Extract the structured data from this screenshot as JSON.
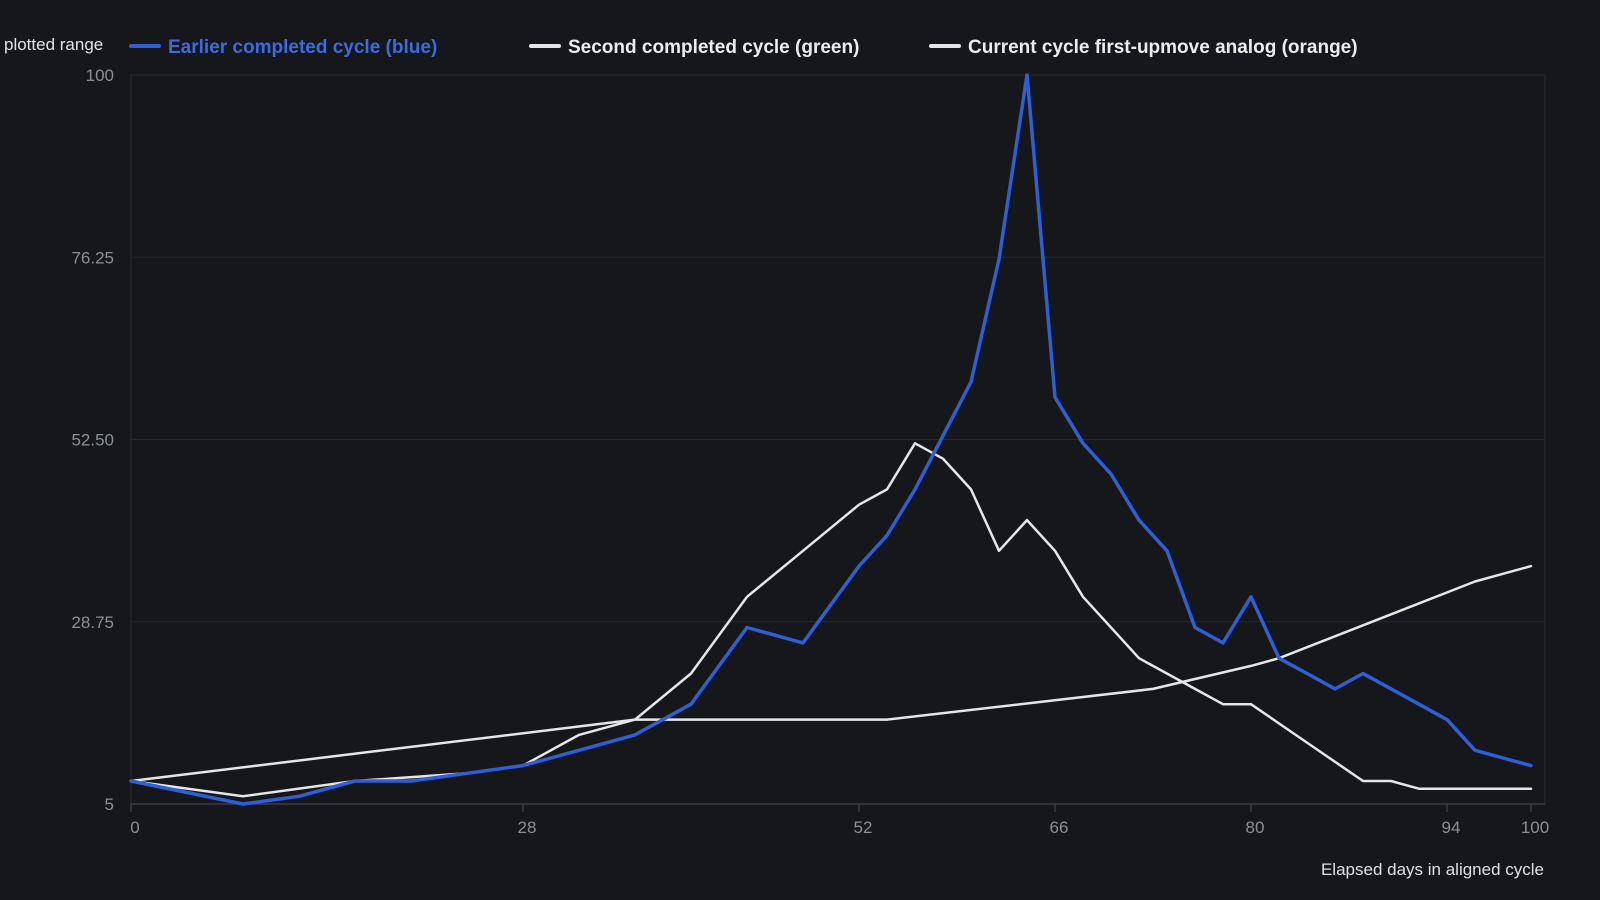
{
  "chart_data": {
    "type": "line",
    "range_label": "plotted range",
    "xlabel": "Elapsed days in aligned cycle",
    "ylabel": "",
    "xlim": [
      0,
      101
    ],
    "ylim": [
      5,
      100
    ],
    "x_ticks": [
      "0",
      "28",
      "52",
      "66",
      "80",
      "94",
      "100"
    ],
    "x_tick_values": [
      0,
      28,
      52,
      66,
      80,
      94,
      100
    ],
    "y_ticks": [
      "5",
      "28.75",
      "52.50",
      "76.25",
      "100"
    ],
    "y_tick_values": [
      5,
      28.75,
      52.5,
      76.25,
      100
    ],
    "grid": true,
    "legend_position": "top",
    "background_color": "#15171b",
    "series": [
      {
        "name": "Earlier completed cycle (blue)",
        "color": "#2e5fd6",
        "legend_text_color": "#3a6be0",
        "width": 3.5,
        "x": [
          0,
          8,
          12,
          16,
          20,
          24,
          28,
          32,
          36,
          40,
          44,
          48,
          52,
          54,
          56,
          58,
          60,
          62,
          64,
          66,
          68,
          70,
          72,
          74,
          76,
          78,
          80,
          82,
          84,
          86,
          88,
          90,
          92,
          94,
          96,
          98,
          100
        ],
        "y": [
          8,
          5,
          6,
          8,
          8,
          9,
          10,
          12,
          14,
          18,
          28,
          26,
          36,
          40,
          46,
          53,
          60,
          76,
          100,
          58,
          52,
          48,
          42,
          38,
          28,
          26,
          32,
          24,
          22,
          20,
          22,
          20,
          18,
          16,
          12,
          11,
          10
        ]
      },
      {
        "name": "Second completed cycle (green)",
        "color": "#e6e6e6",
        "legend_text_color": "#ececec",
        "width": 2.5,
        "x": [
          0,
          8,
          16,
          24,
          28,
          32,
          36,
          40,
          44,
          48,
          52,
          54,
          56,
          58,
          60,
          62,
          64,
          66,
          68,
          72,
          76,
          78,
          80,
          84,
          88,
          90,
          92,
          94,
          100
        ],
        "y": [
          8,
          6,
          8,
          9,
          10,
          14,
          16,
          22,
          32,
          38,
          44,
          46,
          52,
          50,
          46,
          38,
          42,
          38,
          32,
          24,
          20,
          18,
          18,
          13,
          8,
          8,
          7,
          7,
          7
        ]
      },
      {
        "name": "Current cycle first-upmove analog (orange)",
        "color": "#e6e6e6",
        "legend_text_color": "#ececec",
        "width": 2.5,
        "x": [
          0,
          36,
          54,
          73,
          80,
          82,
          96,
          100
        ],
        "y": [
          8,
          16,
          16,
          20,
          23,
          24,
          34,
          36
        ]
      }
    ]
  }
}
